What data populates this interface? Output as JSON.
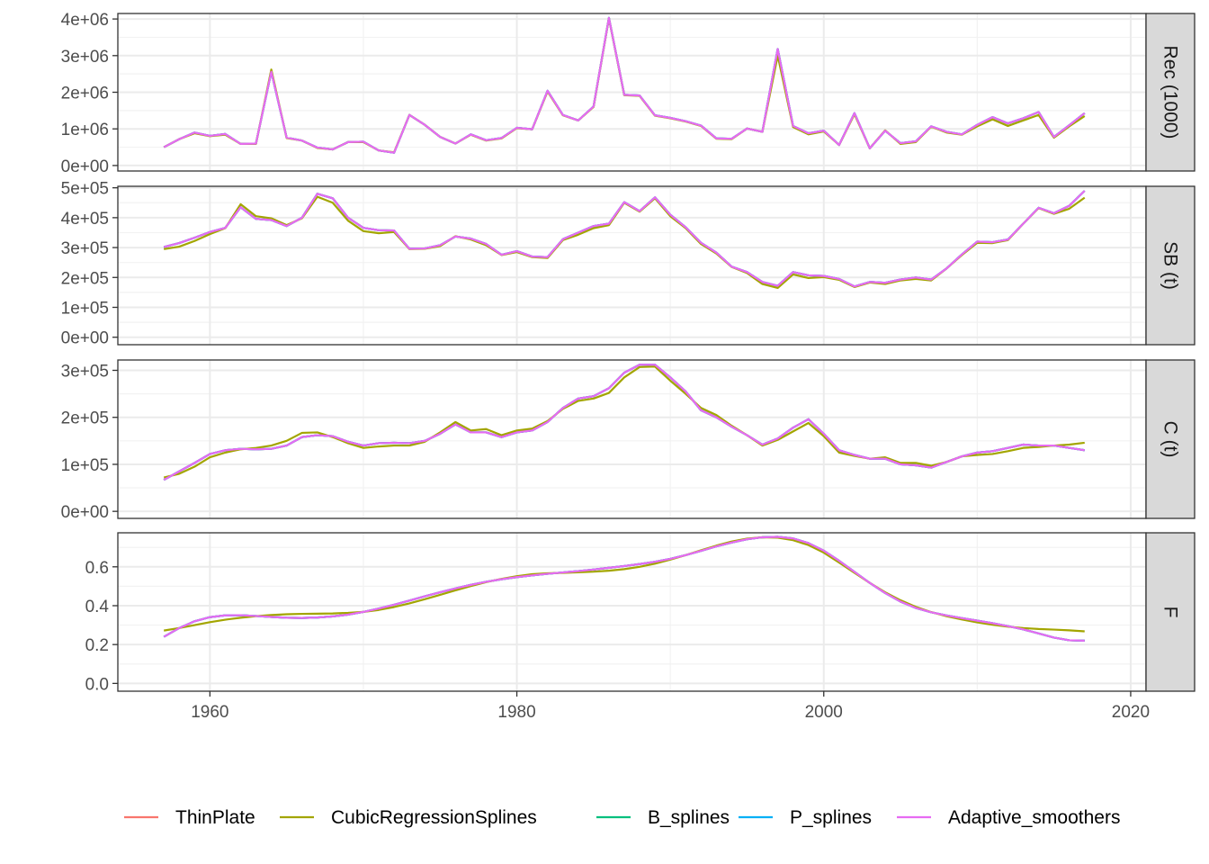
{
  "chart_data": {
    "type": "line",
    "x_label": "",
    "x_ticks": [
      1960,
      1980,
      2000,
      2020
    ],
    "x_range": [
      1954,
      2021
    ],
    "series": [
      {
        "name": "ThinPlate",
        "color": "#F8766D"
      },
      {
        "name": "CubicRegressionSplines",
        "color": "#A3A500"
      },
      {
        "name": "B_splines",
        "color": "#00BF7D"
      },
      {
        "name": "P_splines",
        "color": "#00B0F6"
      },
      {
        "name": "Adaptive_smoothers",
        "color": "#E76BF3"
      }
    ],
    "panels": [
      {
        "strip": "Rec (1000)",
        "ylim": [
          -150000,
          4150000
        ],
        "y_ticks": [
          0,
          1000000,
          2000000,
          3000000,
          4000000
        ],
        "y_tick_labels": [
          "0e+00",
          "1e+06",
          "2e+06",
          "3e+06",
          "4e+06"
        ],
        "x_start": 1957,
        "values": [
          500000,
          720000,
          880000,
          800000,
          840000,
          590000,
          590000,
          2620000,
          750000,
          680000,
          480000,
          440000,
          640000,
          640000,
          410000,
          360000,
          1380000,
          1110000,
          780000,
          600000,
          840000,
          680000,
          740000,
          1020000,
          990000,
          2020000,
          1370000,
          1230000,
          1600000,
          4020000,
          1920000,
          1900000,
          1360000,
          1290000,
          1200000,
          1080000,
          730000,
          720000,
          1010000,
          920000,
          3000000,
          1050000,
          850000,
          930000,
          560000,
          1400000,
          470000,
          960000,
          590000,
          640000,
          1060000,
          900000,
          840000,
          1070000,
          1260000,
          1080000,
          1230000,
          1380000,
          760000,
          1070000,
          1350000
        ],
        "alt_values": [
          500000,
          720000,
          900000,
          810000,
          860000,
          590000,
          600000,
          2560000,
          760000,
          680000,
          490000,
          440000,
          640000,
          650000,
          410000,
          350000,
          1380000,
          1110000,
          780000,
          600000,
          850000,
          690000,
          750000,
          1030000,
          990000,
          2040000,
          1380000,
          1230000,
          1610000,
          4030000,
          1930000,
          1910000,
          1370000,
          1300000,
          1210000,
          1090000,
          740000,
          730000,
          1010000,
          920000,
          3180000,
          1080000,
          880000,
          950000,
          560000,
          1430000,
          470000,
          950000,
          610000,
          660000,
          1070000,
          920000,
          850000,
          1110000,
          1320000,
          1150000,
          1290000,
          1460000,
          780000,
          1100000,
          1430000
        ]
      },
      {
        "strip": "SB (t)",
        "ylim": [
          -25000,
          505000
        ],
        "y_ticks": [
          0,
          100000,
          200000,
          300000,
          400000,
          500000
        ],
        "y_tick_labels": [
          "0e+00",
          "1e+05",
          "2e+05",
          "3e+05",
          "4e+05",
          "5e+05"
        ],
        "x_start": 1957,
        "values": [
          295000,
          303000,
          322000,
          345000,
          365000,
          445000,
          405000,
          398000,
          375000,
          398000,
          470000,
          450000,
          390000,
          355000,
          348000,
          352000,
          295000,
          296000,
          305000,
          338000,
          327000,
          308000,
          275000,
          285000,
          268000,
          265000,
          325000,
          343000,
          365000,
          375000,
          450000,
          420000,
          465000,
          405000,
          365000,
          312000,
          280000,
          235000,
          215000,
          178000,
          165000,
          210000,
          198000,
          201000,
          192000,
          168000,
          183000,
          178000,
          190000,
          195000,
          190000,
          230000,
          275000,
          316000,
          315000,
          325000,
          380000,
          432000,
          413000,
          430000,
          467000
        ],
        "alt_values": [
          302000,
          315000,
          333000,
          352000,
          366000,
          435000,
          396000,
          392000,
          372000,
          400000,
          480000,
          465000,
          400000,
          366000,
          358000,
          357000,
          296000,
          297000,
          308000,
          337000,
          330000,
          312000,
          276000,
          288000,
          270000,
          268000,
          328000,
          350000,
          372000,
          380000,
          452000,
          422000,
          468000,
          410000,
          368000,
          316000,
          283000,
          236000,
          218000,
          185000,
          172000,
          218000,
          207000,
          205000,
          195000,
          170000,
          185000,
          182000,
          193000,
          200000,
          193000,
          230000,
          277000,
          320000,
          318000,
          327000,
          380000,
          433000,
          415000,
          440000,
          490000
        ]
      },
      {
        "strip": "C (t)",
        "ylim": [
          -15000,
          322000
        ],
        "y_ticks": [
          0,
          100000,
          200000,
          300000
        ],
        "y_tick_labels": [
          "0e+00",
          "1e+05",
          "2e+05",
          "3e+05"
        ],
        "x_start": 1957,
        "values": [
          72000,
          80000,
          95000,
          115000,
          125000,
          132000,
          135000,
          140000,
          150000,
          167000,
          168000,
          158000,
          145000,
          135000,
          138000,
          140000,
          140000,
          148000,
          168000,
          190000,
          172000,
          175000,
          162000,
          172000,
          176000,
          192000,
          218000,
          235000,
          240000,
          252000,
          285000,
          307000,
          308000,
          278000,
          250000,
          220000,
          205000,
          182000,
          162000,
          140000,
          152000,
          170000,
          188000,
          160000,
          125000,
          118000,
          112000,
          115000,
          103000,
          103000,
          97000,
          105000,
          117000,
          120000,
          122000,
          128000,
          135000,
          137000,
          140000,
          142000,
          146000
        ],
        "alt_values": [
          67000,
          85000,
          103000,
          122000,
          130000,
          133000,
          132000,
          133000,
          140000,
          158000,
          162000,
          160000,
          148000,
          140000,
          145000,
          146000,
          145000,
          150000,
          165000,
          185000,
          168000,
          168000,
          158000,
          168000,
          172000,
          190000,
          220000,
          240000,
          245000,
          262000,
          295000,
          312000,
          312000,
          285000,
          255000,
          215000,
          200000,
          180000,
          162000,
          142000,
          155000,
          178000,
          196000,
          165000,
          130000,
          120000,
          112000,
          112000,
          100000,
          98000,
          93000,
          105000,
          117000,
          125000,
          128000,
          135000,
          142000,
          140000,
          140000,
          135000,
          130000
        ]
      },
      {
        "strip": "F",
        "ylim": [
          -0.04,
          0.775
        ],
        "y_ticks": [
          0.0,
          0.2,
          0.4,
          0.6
        ],
        "y_tick_labels": [
          "0.0",
          "0.2",
          "0.4",
          "0.6"
        ],
        "x_start": 1957,
        "values": [
          0.272,
          0.285,
          0.3,
          0.315,
          0.328,
          0.338,
          0.346,
          0.352,
          0.356,
          0.358,
          0.359,
          0.36,
          0.363,
          0.368,
          0.378,
          0.393,
          0.412,
          0.433,
          0.456,
          0.479,
          0.501,
          0.521,
          0.538,
          0.552,
          0.562,
          0.567,
          0.569,
          0.572,
          0.575,
          0.58,
          0.588,
          0.6,
          0.616,
          0.637,
          0.66,
          0.685,
          0.709,
          0.73,
          0.745,
          0.752,
          0.75,
          0.737,
          0.712,
          0.673,
          0.622,
          0.569,
          0.517,
          0.469,
          0.428,
          0.394,
          0.367,
          0.346,
          0.329,
          0.314,
          0.302,
          0.292,
          0.285,
          0.28,
          0.277,
          0.273,
          0.268
        ],
        "alt_values": [
          0.24,
          0.285,
          0.32,
          0.341,
          0.35,
          0.351,
          0.347,
          0.342,
          0.338,
          0.337,
          0.339,
          0.345,
          0.354,
          0.368,
          0.385,
          0.405,
          0.426,
          0.448,
          0.469,
          0.489,
          0.507,
          0.523,
          0.536,
          0.547,
          0.556,
          0.564,
          0.571,
          0.578,
          0.586,
          0.595,
          0.604,
          0.614,
          0.626,
          0.641,
          0.66,
          0.682,
          0.705,
          0.725,
          0.742,
          0.752,
          0.754,
          0.746,
          0.722,
          0.683,
          0.631,
          0.574,
          0.517,
          0.465,
          0.421,
          0.388,
          0.366,
          0.35,
          0.336,
          0.323,
          0.31,
          0.295,
          0.278,
          0.257,
          0.236,
          0.222,
          0.22
        ]
      }
    ]
  }
}
